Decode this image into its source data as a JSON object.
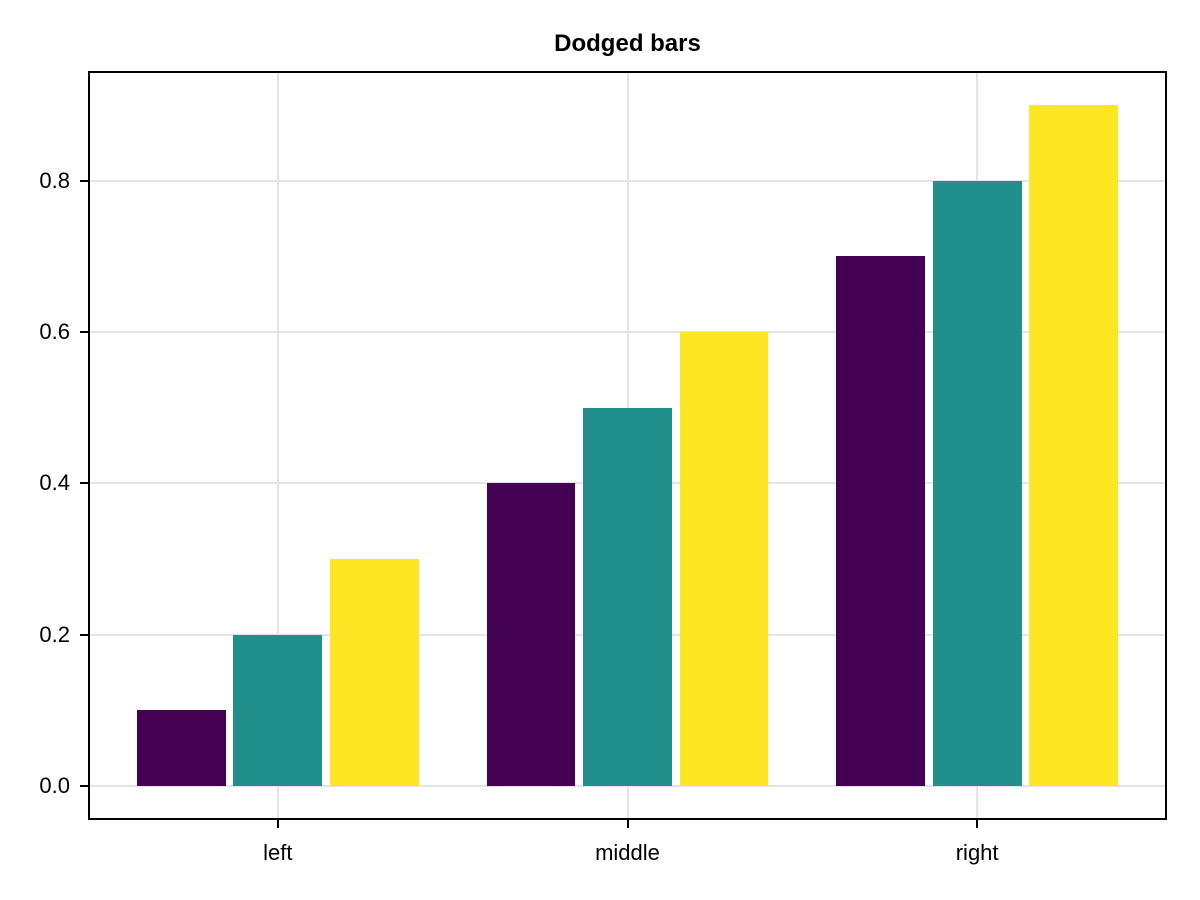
{
  "chart_data": {
    "type": "bar",
    "mode": "dodged",
    "title": "Dodged bars",
    "xlabel": "",
    "ylabel": "",
    "categories": [
      "left",
      "middle",
      "right"
    ],
    "series": [
      {
        "color": "#440154",
        "values": [
          0.1,
          0.4,
          0.7
        ]
      },
      {
        "color": "#21908c",
        "values": [
          0.2,
          0.5,
          0.8
        ]
      },
      {
        "color": "#fde725",
        "values": [
          0.3,
          0.6,
          0.9
        ]
      }
    ],
    "ytick_labels": [
      "0.0",
      "0.2",
      "0.4",
      "0.6",
      "0.8"
    ],
    "ytick_values": [
      0,
      0.2,
      0.4,
      0.6,
      0.8
    ],
    "ylim": [
      -0.045,
      0.945
    ],
    "xlim": [
      0.457,
      3.543
    ],
    "grid": true,
    "legend": "none",
    "colors": {
      "background": "#ffffff",
      "grid": "#e4e4e4",
      "spine": "#000000",
      "text": "#000000"
    },
    "bar_width_units": 0.254,
    "dodge_offsets_units": [
      -0.276,
      0,
      0.276
    ]
  }
}
